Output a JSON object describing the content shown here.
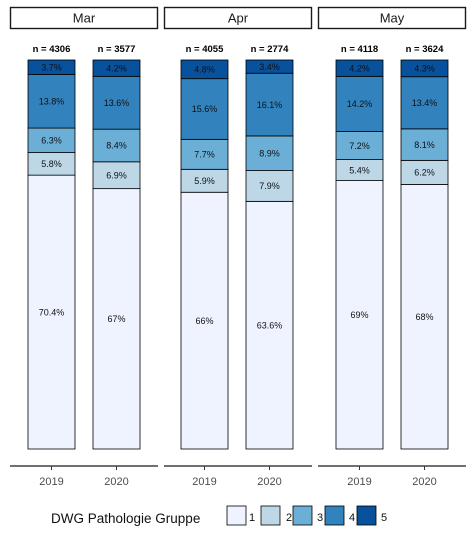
{
  "chart_data": {
    "type": "bar",
    "stacked": true,
    "normalized_percent": true,
    "facets": [
      {
        "name": "Mar",
        "bars": [
          {
            "x": "2019",
            "n_label": "n = 4306",
            "segments": [
              70.4,
              5.8,
              6.3,
              13.8,
              3.7
            ],
            "labels": [
              "70.4%",
              "5.8%",
              "6.3%",
              "13.8%",
              "3.7%"
            ]
          },
          {
            "x": "2020",
            "n_label": "n = 3577",
            "segments": [
              67.0,
              6.9,
              8.4,
              13.6,
              4.2
            ],
            "labels": [
              "67%",
              "6.9%",
              "8.4%",
              "13.6%",
              "4.2%"
            ]
          }
        ]
      },
      {
        "name": "Apr",
        "bars": [
          {
            "x": "2019",
            "n_label": "n = 4055",
            "segments": [
              66.0,
              5.9,
              7.7,
              15.6,
              4.8
            ],
            "labels": [
              "66%",
              "5.9%",
              "7.7%",
              "15.6%",
              "4.8%"
            ]
          },
          {
            "x": "2020",
            "n_label": "n = 2774",
            "segments": [
              63.6,
              7.9,
              8.9,
              16.1,
              3.4
            ],
            "labels": [
              "63.6%",
              "7.9%",
              "8.9%",
              "16.1%",
              "3.4%"
            ]
          }
        ]
      },
      {
        "name": "May",
        "bars": [
          {
            "x": "2019",
            "n_label": "n = 4118",
            "segments": [
              69.0,
              5.4,
              7.2,
              14.2,
              4.2
            ],
            "labels": [
              "69%",
              "5.4%",
              "7.2%",
              "14.2%",
              "4.2%"
            ]
          },
          {
            "x": "2020",
            "n_label": "n = 3624",
            "segments": [
              68.0,
              6.2,
              8.1,
              13.4,
              4.3
            ],
            "labels": [
              "68%",
              "6.2%",
              "8.1%",
              "13.4%",
              "4.3%"
            ]
          }
        ]
      }
    ],
    "groups": [
      "1",
      "2",
      "3",
      "4",
      "5"
    ],
    "colors": [
      "#eff3ff",
      "#bdd7e7",
      "#6baed6",
      "#3182bd",
      "#08519c"
    ],
    "legend": {
      "title": "DWG Pathologie Gruppe",
      "labels": [
        "1",
        "2",
        "3",
        "4",
        "5"
      ],
      "placement": "bottom"
    },
    "ylim": [
      0,
      100
    ],
    "grid": false
  }
}
